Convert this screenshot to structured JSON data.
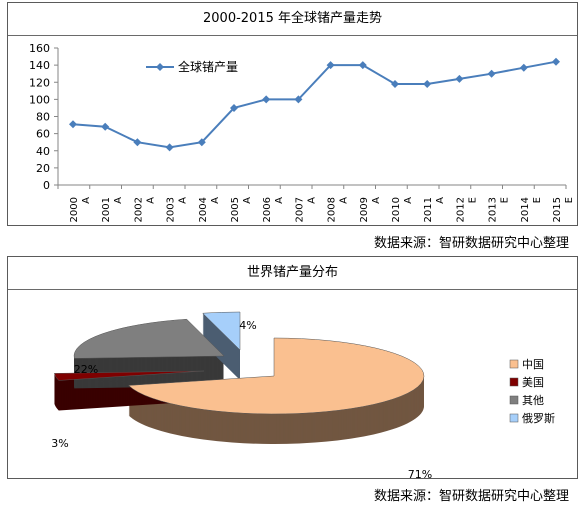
{
  "chart_data": [
    {
      "type": "line",
      "title": "2000-2015 年全球锗产量走势",
      "categories": [
        "2000 A",
        "2001 A",
        "2002 A",
        "2003 A",
        "2004 A",
        "2005 A",
        "2006 A",
        "2007 A",
        "2008 A",
        "2009 A",
        "2010 A",
        "2011 A",
        "2012 E",
        "2013 E",
        "2014 E",
        "2015 E"
      ],
      "series": [
        {
          "name": "全球锗产量",
          "color": "#4a7ebb",
          "values": [
            71,
            68,
            50,
            44,
            50,
            90,
            100,
            100,
            140,
            140,
            118,
            118,
            124,
            130,
            137,
            144
          ]
        }
      ],
      "yticks": [
        "0",
        "20",
        "40",
        "60",
        "80",
        "100",
        "120",
        "140",
        "160"
      ],
      "ylim": [
        0,
        160
      ],
      "grid": false,
      "legend": "top-left inside plot"
    },
    {
      "type": "pie",
      "title": "世界锗产量分布",
      "slices": [
        {
          "label": "中国",
          "value": 71,
          "pct": "71%",
          "color": "#fac090"
        },
        {
          "label": "美国",
          "value": 3,
          "pct": "3%",
          "color": "#7f0000"
        },
        {
          "label": "其他",
          "value": 22,
          "pct": "22%",
          "color": "#7f7f7f"
        },
        {
          "label": "俄罗斯",
          "value": 4,
          "pct": "4%",
          "color": "#a6cffa"
        }
      ],
      "legend": "right"
    }
  ],
  "sources": {
    "line_chart": "数据来源：智研数据研究中心整理",
    "pie_chart": "数据来源：智研数据研究中心整理"
  }
}
